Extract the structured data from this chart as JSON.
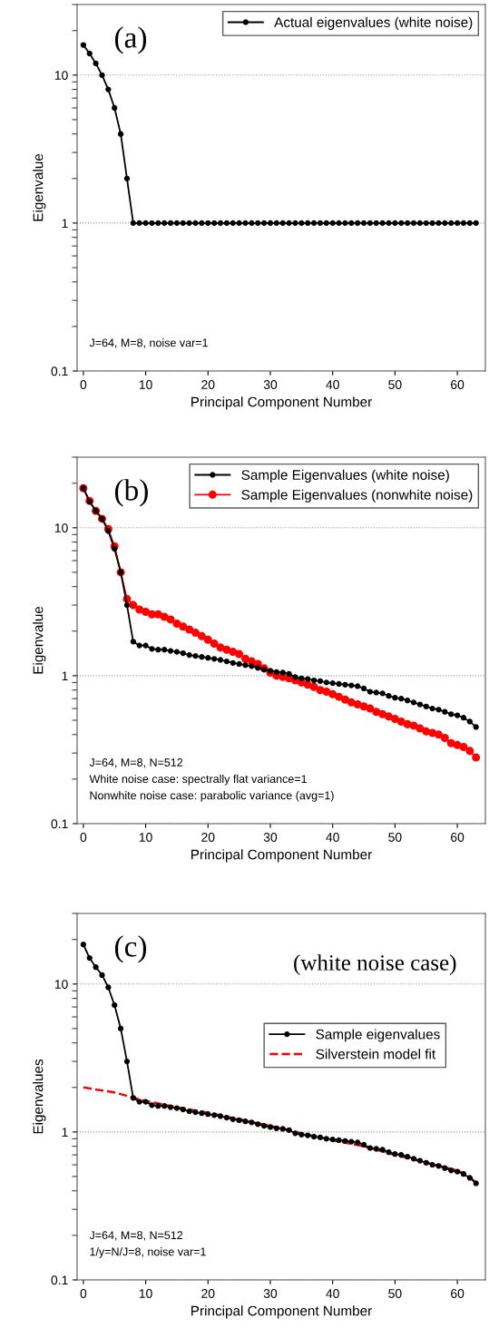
{
  "chart_data": [
    {
      "type": "line",
      "title": "(a)",
      "xlabel": "Principal Component Number",
      "ylabel": "Eigenvalue",
      "log": true,
      "grid": "y",
      "legend": "top right",
      "marker": "circle",
      "line_style": "solid",
      "xlim": [
        -1,
        64.5
      ],
      "xticks": [
        0,
        10,
        20,
        30,
        40,
        50,
        60
      ],
      "ylim": [
        0.1,
        30
      ],
      "yticks": [
        0.1,
        1,
        10
      ],
      "x": [
        0,
        1,
        2,
        3,
        4,
        5,
        6,
        7,
        8,
        9,
        10,
        11,
        12,
        13,
        14,
        15,
        16,
        17,
        18,
        19,
        20,
        21,
        22,
        23,
        24,
        25,
        26,
        27,
        28,
        29,
        30,
        31,
        32,
        33,
        34,
        35,
        36,
        37,
        38,
        39,
        40,
        41,
        42,
        43,
        44,
        45,
        46,
        47,
        48,
        49,
        50,
        51,
        52,
        53,
        54,
        55,
        56,
        57,
        58,
        59,
        60,
        61,
        62,
        63
      ],
      "series": [
        {
          "name": "Actual eigenvalues (white noise)",
          "color": "#000000",
          "values": [
            16,
            14,
            12,
            10,
            8,
            6,
            4,
            2,
            1,
            1,
            1,
            1,
            1,
            1,
            1,
            1,
            1,
            1,
            1,
            1,
            1,
            1,
            1,
            1,
            1,
            1,
            1,
            1,
            1,
            1,
            1,
            1,
            1,
            1,
            1,
            1,
            1,
            1,
            1,
            1,
            1,
            1,
            1,
            1,
            1,
            1,
            1,
            1,
            1,
            1,
            1,
            1,
            1,
            1,
            1,
            1,
            1,
            1,
            1,
            1,
            1,
            1,
            1,
            1
          ]
        }
      ],
      "annotations": [
        "J=64, M=8, noise var=1"
      ]
    },
    {
      "type": "line",
      "title": "(b)",
      "xlabel": "Principal Component Number",
      "ylabel": "Eigenvalue",
      "log": true,
      "grid": "y",
      "legend": "top right",
      "marker": "circle",
      "line_style": "solid",
      "xlim": [
        -1,
        64.5
      ],
      "xticks": [
        0,
        10,
        20,
        30,
        40,
        50,
        60
      ],
      "ylim": [
        0.1,
        30
      ],
      "yticks": [
        0.1,
        1,
        10
      ],
      "x": [
        0,
        1,
        2,
        3,
        4,
        5,
        6,
        7,
        8,
        9,
        10,
        11,
        12,
        13,
        14,
        15,
        16,
        17,
        18,
        19,
        20,
        21,
        22,
        23,
        24,
        25,
        26,
        27,
        28,
        29,
        30,
        31,
        32,
        33,
        34,
        35,
        36,
        37,
        38,
        39,
        40,
        41,
        42,
        43,
        44,
        45,
        46,
        47,
        48,
        49,
        50,
        51,
        52,
        53,
        54,
        55,
        56,
        57,
        58,
        59,
        60,
        61,
        62,
        63
      ],
      "series": [
        {
          "name": "Sample Eigenvalues (white noise)",
          "color": "#000000",
          "values": [
            18.5,
            15,
            13,
            11.5,
            9.5,
            7.2,
            5,
            3.0,
            1.7,
            1.6,
            1.6,
            1.52,
            1.5,
            1.5,
            1.47,
            1.45,
            1.42,
            1.38,
            1.36,
            1.34,
            1.32,
            1.3,
            1.28,
            1.25,
            1.22,
            1.2,
            1.18,
            1.16,
            1.13,
            1.1,
            1.08,
            1.06,
            1.05,
            1.03,
            0.98,
            0.96,
            0.95,
            0.93,
            0.92,
            0.9,
            0.89,
            0.88,
            0.87,
            0.86,
            0.85,
            0.82,
            0.78,
            0.77,
            0.76,
            0.73,
            0.71,
            0.7,
            0.68,
            0.66,
            0.64,
            0.62,
            0.6,
            0.59,
            0.57,
            0.55,
            0.54,
            0.52,
            0.49,
            0.45
          ]
        },
        {
          "name": "Sample Eigenvalues (nonwhite noise)",
          "color": "#ff0000",
          "values": [
            18.5,
            15.2,
            13,
            11.5,
            9.8,
            7.5,
            5,
            3.3,
            3.0,
            2.8,
            2.7,
            2.6,
            2.6,
            2.5,
            2.4,
            2.25,
            2.15,
            2.05,
            1.95,
            1.85,
            1.75,
            1.65,
            1.55,
            1.5,
            1.45,
            1.4,
            1.3,
            1.25,
            1.2,
            1.12,
            1.05,
            1.0,
            0.98,
            0.96,
            0.93,
            0.9,
            0.87,
            0.84,
            0.8,
            0.78,
            0.75,
            0.72,
            0.69,
            0.66,
            0.64,
            0.62,
            0.6,
            0.57,
            0.55,
            0.53,
            0.51,
            0.49,
            0.47,
            0.46,
            0.44,
            0.42,
            0.41,
            0.4,
            0.38,
            0.35,
            0.34,
            0.33,
            0.31,
            0.28
          ],
          "marker": "circle"
        }
      ],
      "annotations": [
        "J=64, M=8, N=512",
        "White noise case: spectrally flat variance=1",
        "Nonwhite noise case: parabolic variance (avg=1)"
      ]
    },
    {
      "type": "line",
      "title": "(c)",
      "subtitle": "(white noise case)",
      "xlabel": "Principal Component Number",
      "ylabel": "Eigenvalues",
      "log": true,
      "grid": "y",
      "legend": "right",
      "marker": "circle",
      "line_style": "solid",
      "xlim": [
        -1,
        64.5
      ],
      "xticks": [
        0,
        10,
        20,
        30,
        40,
        50,
        60
      ],
      "ylim": [
        0.1,
        30
      ],
      "yticks": [
        0.1,
        1,
        10
      ],
      "x": [
        0,
        1,
        2,
        3,
        4,
        5,
        6,
        7,
        8,
        9,
        10,
        11,
        12,
        13,
        14,
        15,
        16,
        17,
        18,
        19,
        20,
        21,
        22,
        23,
        24,
        25,
        26,
        27,
        28,
        29,
        30,
        31,
        32,
        33,
        34,
        35,
        36,
        37,
        38,
        39,
        40,
        41,
        42,
        43,
        44,
        45,
        46,
        47,
        48,
        49,
        50,
        51,
        52,
        53,
        54,
        55,
        56,
        57,
        58,
        59,
        60,
        61,
        62,
        63
      ],
      "series": [
        {
          "name": "Sample eigenvalues",
          "color": "#000000",
          "values": [
            18.5,
            15,
            13,
            11.5,
            9.5,
            7.2,
            5,
            3.0,
            1.7,
            1.6,
            1.6,
            1.52,
            1.5,
            1.5,
            1.47,
            1.45,
            1.42,
            1.38,
            1.36,
            1.34,
            1.32,
            1.3,
            1.28,
            1.25,
            1.22,
            1.2,
            1.18,
            1.16,
            1.13,
            1.1,
            1.08,
            1.06,
            1.05,
            1.03,
            0.98,
            0.96,
            0.95,
            0.93,
            0.92,
            0.9,
            0.89,
            0.88,
            0.87,
            0.86,
            0.85,
            0.82,
            0.78,
            0.77,
            0.76,
            0.73,
            0.71,
            0.7,
            0.68,
            0.66,
            0.64,
            0.62,
            0.6,
            0.59,
            0.57,
            0.55,
            0.54,
            0.52,
            0.49,
            0.45
          ]
        },
        {
          "name": "Silverstein model fit",
          "color": "#ff0000",
          "marker": "none",
          "line_style": "dashed",
          "x": [
            0,
            5,
            10,
            15,
            20,
            25,
            30,
            35,
            40,
            45,
            50,
            55,
            60,
            62,
            63
          ],
          "values": [
            2.0,
            1.85,
            1.62,
            1.47,
            1.35,
            1.22,
            1.1,
            0.98,
            0.88,
            0.8,
            0.7,
            0.62,
            0.55,
            0.5,
            0.45
          ]
        }
      ],
      "annotations": [
        "J=64, M=8, N=512",
        "1/y=N/J=8, noise var=1"
      ]
    }
  ]
}
